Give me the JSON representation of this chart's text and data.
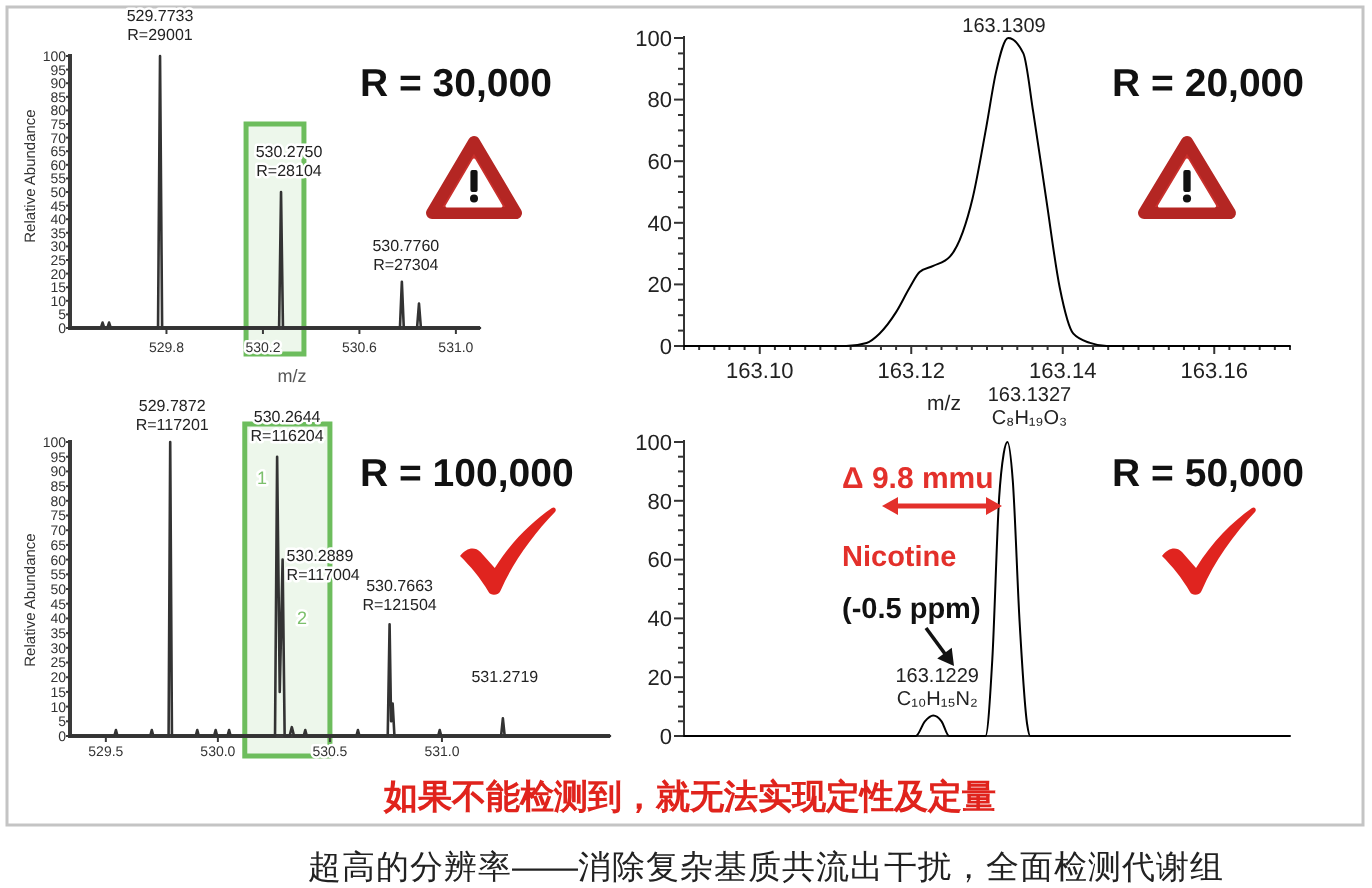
{
  "chart_data": [
    {
      "type": "line",
      "title": "R = 30,000",
      "xlabel": "m/z",
      "ylabel": "Relative Abundance",
      "color": "#333333",
      "x": [
        529.4,
        529.528,
        529.535,
        529.542,
        529.555,
        529.562,
        529.569,
        529.765,
        529.7733,
        529.782,
        530.267,
        530.275,
        530.283,
        530.768,
        530.776,
        530.784,
        530.839,
        530.847,
        530.855,
        531.1
      ],
      "values": [
        0,
        0,
        2,
        0,
        0,
        2,
        0,
        0,
        100,
        0,
        0,
        50,
        0,
        0,
        17,
        0,
        0,
        9,
        0,
        0
      ],
      "xlim": [
        529.4,
        531.1
      ],
      "ylim": [
        0,
        100
      ],
      "xticks": [
        529.8,
        530.2,
        530.6,
        {
          "value": 531,
          "label": "531.0"
        }
      ],
      "yticks": [
        0,
        5,
        10,
        15,
        20,
        25,
        30,
        35,
        40,
        45,
        50,
        55,
        60,
        65,
        70,
        75,
        80,
        85,
        90,
        95,
        100
      ],
      "bands": [
        {
          "axis": "x",
          "from": 530.13,
          "to": 530.37,
          "color": "#6dbd5d"
        }
      ],
      "annotations": [
        {
          "text": "529.7733\nR=29001",
          "x": 529.7733,
          "y": 100
        },
        {
          "text": "530.2750\nR=28104",
          "x": 530.275,
          "y": 50
        },
        {
          "text": "530.7760\nR=27304",
          "x": 530.776,
          "y": 17
        }
      ]
    },
    {
      "type": "line",
      "title": "R = 20,000",
      "xlabel": "m/z",
      "color": "#000000",
      "x": [
        163.09,
        163.1114,
        163.1141,
        163.1158,
        163.118,
        163.1198,
        163.1211,
        163.1229,
        163.1251,
        163.1268,
        163.1281,
        163.1299,
        163.1312,
        163.1328,
        163.1348,
        163.1361,
        163.1378,
        163.1396,
        163.1414,
        163.1436,
        163.1458,
        163.17
      ],
      "values": [
        0,
        0,
        1,
        4,
        11,
        19,
        24,
        26,
        29,
        37,
        48,
        71,
        89,
        100,
        95,
        76,
        48,
        19,
        4,
        1,
        0,
        0
      ],
      "xlim": [
        163.09,
        163.17
      ],
      "ylim": [
        0,
        100
      ],
      "xticks": [
        {
          "value": 163.09,
          "label": null
        },
        {
          "value": 163.092,
          "label": null
        },
        {
          "value": 163.094,
          "label": null
        },
        {
          "value": 163.096,
          "label": null
        },
        {
          "value": 163.098,
          "label": null
        },
        {
          "value": 163.1,
          "label": "163.10"
        },
        {
          "value": 163.102,
          "label": null
        },
        {
          "value": 163.104,
          "label": null
        },
        {
          "value": 163.106,
          "label": null
        },
        {
          "value": 163.108,
          "label": null
        },
        {
          "value": 163.11,
          "label": null
        },
        {
          "value": 163.112,
          "label": null
        },
        {
          "value": 163.114,
          "label": null
        },
        {
          "value": 163.116,
          "label": null
        },
        {
          "value": 163.118,
          "label": null
        },
        163.12,
        {
          "value": 163.122,
          "label": null
        },
        {
          "value": 163.124,
          "label": null
        },
        {
          "value": 163.126,
          "label": null
        },
        {
          "value": 163.128,
          "label": null
        },
        {
          "value": 163.13,
          "label": null
        },
        {
          "value": 163.132,
          "label": null
        },
        {
          "value": 163.134,
          "label": null
        },
        {
          "value": 163.136,
          "label": null
        },
        {
          "value": 163.138,
          "label": null
        },
        163.14,
        {
          "value": 163.142,
          "label": null
        },
        {
          "value": 163.144,
          "label": null
        },
        {
          "value": 163.146,
          "label": null
        },
        {
          "value": 163.148,
          "label": null
        },
        {
          "value": 163.15,
          "label": null
        },
        {
          "value": 163.152,
          "label": null
        },
        {
          "value": 163.154,
          "label": null
        },
        {
          "value": 163.156,
          "label": null
        },
        {
          "value": 163.158,
          "label": null
        },
        163.16,
        {
          "value": 163.162,
          "label": null
        },
        {
          "value": 163.164,
          "label": null
        },
        {
          "value": 163.166,
          "label": null
        },
        {
          "value": 163.168,
          "label": null
        },
        {
          "value": 163.17,
          "label": null
        }
      ],
      "yticks": [
        0,
        {
          "value": 5,
          "label": null
        },
        {
          "value": 10,
          "label": null
        },
        {
          "value": 15,
          "label": null
        },
        20,
        {
          "value": 25,
          "label": null
        },
        {
          "value": 30,
          "label": null
        },
        {
          "value": 35,
          "label": null
        },
        40,
        {
          "value": 45,
          "label": null
        },
        {
          "value": 50,
          "label": null
        },
        {
          "value": 55,
          "label": null
        },
        60,
        {
          "value": 65,
          "label": null
        },
        {
          "value": 70,
          "label": null
        },
        {
          "value": 75,
          "label": null
        },
        80,
        {
          "value": 85,
          "label": null
        },
        {
          "value": 90,
          "label": null
        },
        {
          "value": 95,
          "label": null
        },
        100
      ],
      "annotations": [
        "163.1309"
      ]
    },
    {
      "type": "line",
      "title": "R = 100,000",
      "ylabel": "Relative Abundance",
      "color": "#333333",
      "x": [
        529.34,
        529.538,
        529.545,
        529.552,
        529.698,
        529.705,
        529.712,
        529.78,
        529.7872,
        529.795,
        529.901,
        529.908,
        529.915,
        529.983,
        529.99,
        529.997,
        530.043,
        530.05,
        530.057,
        530.255,
        530.2644,
        530.276,
        530.2889,
        530.298,
        530.32,
        530.33,
        530.34,
        530.383,
        530.39,
        530.397,
        530.618,
        530.625,
        530.632,
        530.758,
        530.7663,
        530.773,
        530.78,
        530.788,
        530.983,
        530.99,
        530.997,
        531.264,
        531.2719,
        531.28,
        531.75
      ],
      "values": [
        0,
        0,
        2,
        0,
        0,
        2,
        0,
        0,
        100,
        0,
        0,
        2,
        0,
        0,
        2,
        0,
        0,
        2,
        0,
        0,
        95,
        15,
        60,
        0,
        0,
        3,
        0,
        0,
        2,
        0,
        0,
        2,
        0,
        0,
        38,
        5,
        11,
        0,
        0,
        2,
        0,
        0,
        6,
        0,
        0
      ],
      "xlim": [
        529.34,
        531.75
      ],
      "ylim": [
        0,
        100
      ],
      "xticks": [
        529.5,
        {
          "value": 530,
          "label": "530.0"
        },
        530.5,
        {
          "value": 531,
          "label": "531.0"
        }
      ],
      "yticks": [
        0,
        5,
        10,
        15,
        20,
        25,
        30,
        35,
        40,
        45,
        50,
        55,
        60,
        65,
        70,
        75,
        80,
        85,
        90,
        95,
        100
      ],
      "bands": [
        {
          "axis": "x",
          "from": 530.12,
          "to": 530.5,
          "color": "#6dbd5d"
        }
      ],
      "annotations": [
        {
          "text": "529.7872\nR=117201",
          "x": 529.7872,
          "y": 100
        },
        {
          "text": "530.2644\nR=116204",
          "x": 530.2644,
          "y": 95
        },
        {
          "text": "530.2889\nR=117004",
          "x": 530.2889,
          "y": 60
        },
        {
          "text": "530.7663\nR=121504",
          "x": 530.7663,
          "y": 38
        },
        {
          "text": "531.2719",
          "x": 531.2719,
          "y": 6
        },
        "1",
        "2"
      ]
    },
    {
      "type": "line",
      "title": "R = 50,000",
      "color": "#000000",
      "tick_labels": "y",
      "x": [
        163.09,
        163.1206,
        163.1218,
        163.1229,
        163.124,
        163.125,
        163.1298,
        163.1307,
        163.1316,
        163.1322,
        163.1327,
        163.1334,
        163.1343,
        163.1353,
        163.1357,
        163.17
      ],
      "values": [
        0,
        0,
        5,
        7,
        5,
        0,
        0,
        26,
        81,
        96,
        100,
        87,
        39,
        4,
        0,
        0
      ],
      "xlim": [
        163.09,
        163.17
      ],
      "ylim": [
        0,
        100
      ],
      "yticks": [
        0,
        {
          "value": 5,
          "label": null
        },
        {
          "value": 10,
          "label": null
        },
        {
          "value": 15,
          "label": null
        },
        20,
        {
          "value": 25,
          "label": null
        },
        {
          "value": 30,
          "label": null
        },
        {
          "value": 35,
          "label": null
        },
        40,
        {
          "value": 45,
          "label": null
        },
        {
          "value": 50,
          "label": null
        },
        {
          "value": 55,
          "label": null
        },
        60,
        {
          "value": 65,
          "label": null
        },
        {
          "value": 70,
          "label": null
        },
        {
          "value": 75,
          "label": null
        },
        80,
        {
          "value": 85,
          "label": null
        },
        {
          "value": 90,
          "label": null
        },
        {
          "value": 95,
          "label": null
        },
        100
      ],
      "annotations": [
        {
          "text": "163.1327\nC₈H₁₉O₃",
          "x": 163.1327,
          "y": 100
        },
        {
          "text": "163.1229\nC₁₀H₁₅N₂",
          "x": 163.1229,
          "y": 7
        },
        "Δ 9.8 mmu",
        "Nicotine",
        "(-0.5 ppm)"
      ]
    },
    {
      "type": "other",
      "annotations": [
        "如果不能检测到，就无法实现定性及定量",
        "超高的分辨率——消除复杂基质共流出干扰，全面检测代谢组"
      ]
    }
  ]
}
